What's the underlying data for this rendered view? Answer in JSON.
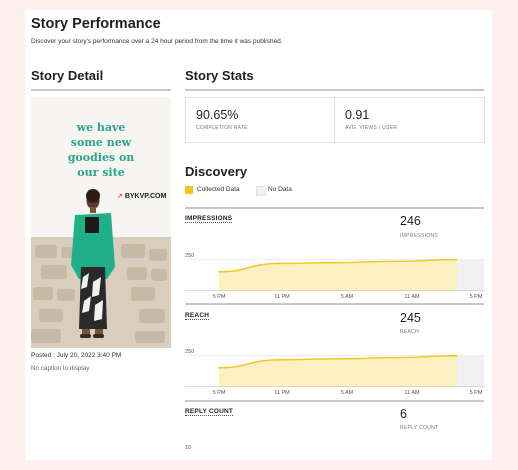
{
  "header": {
    "title": "Story Performance",
    "subtitle": "Discover your story's performance over a 24 hour period from the time it was published."
  },
  "story_detail": {
    "title": "Story Detail",
    "image_text": [
      "we have",
      "some new",
      "goodies on",
      "our site"
    ],
    "brand_text": "BYKVP.COM",
    "posted": "Posted : July 20, 2022 3:40 PM",
    "caption": "No caption to display"
  },
  "story_stats": {
    "title": "Story Stats",
    "completion_rate": {
      "value": "90.65%",
      "label": "COMPLETION RATE"
    },
    "avg_views": {
      "value": "0.91",
      "label": "AVG. VIEWS / USER"
    }
  },
  "discovery": {
    "title": "Discovery",
    "legend": [
      {
        "label": "Collected Data",
        "color": "#f5c518"
      },
      {
        "label": "No Data",
        "color": "#f1f1f1"
      }
    ],
    "x_ticks": [
      "5 PM",
      "11 PM",
      "5 AM",
      "11 AM",
      "5 PM"
    ]
  },
  "metrics": {
    "impressions": {
      "name": "IMPRESSIONS",
      "value": "246",
      "label": "IMPRESSIONS",
      "ymax": "250"
    },
    "reach": {
      "name": "REACH",
      "value": "245",
      "label": "REACH",
      "ymax": "250"
    },
    "reply_count": {
      "name": "REPLY COUNT",
      "value": "6",
      "label": "REPLY COUNT",
      "ymax": "10"
    }
  },
  "colors": {
    "accent": "#f5c518",
    "fill": "#fdf0c0",
    "no_data": "#f1f1f1",
    "story_text": "#2aa48c"
  },
  "chart_data": [
    {
      "type": "area",
      "title": "IMPRESSIONS",
      "x": [
        "5 PM",
        "11 PM",
        "5 AM",
        "11 AM",
        "5 PM"
      ],
      "series": [
        {
          "values": [
            150,
            215,
            222,
            232,
            246
          ]
        }
      ],
      "ylim": [
        0,
        250
      ]
    },
    {
      "type": "area",
      "title": "REACH",
      "x": [
        "5 PM",
        "11 PM",
        "5 AM",
        "11 AM",
        "5 PM"
      ],
      "series": [
        {
          "values": [
            150,
            212,
            220,
            230,
            245
          ]
        }
      ],
      "ylim": [
        0,
        250
      ]
    }
  ]
}
